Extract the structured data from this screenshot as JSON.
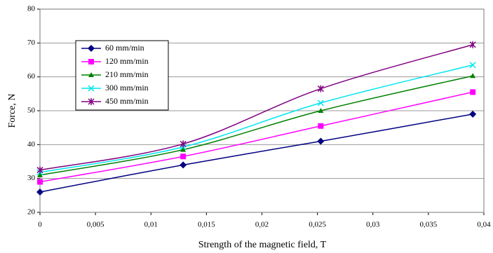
{
  "chart_data": {
    "type": "line",
    "x_label": "Strength of the magnetic field, T",
    "y_label": "Force, N",
    "xlim": [
      0,
      0.04
    ],
    "xticks": [
      0,
      {
        "value": 0.005,
        "label": "0,005"
      },
      {
        "value": 0.01,
        "label": "0,01"
      },
      {
        "value": 0.015,
        "label": "0,015"
      },
      {
        "value": 0.02,
        "label": "0,02"
      },
      {
        "value": 0.025,
        "label": "0,025"
      },
      {
        "value": 0.03,
        "label": "0,03"
      },
      {
        "value": 0.035,
        "label": "0,035"
      },
      {
        "value": 0.04,
        "label": "0,04"
      }
    ],
    "ylim": [
      20,
      80
    ],
    "yticks": [
      20,
      30,
      40,
      50,
      60,
      70,
      80
    ],
    "grid": true,
    "legend": "upper left",
    "x": [
      0,
      0.0129,
      0.0253,
      0.039
    ],
    "series": [
      {
        "name": "60 mm/min",
        "color": "#000080",
        "marker": "diamond",
        "values": [
          26,
          34,
          41,
          49
        ]
      },
      {
        "name": "120 mm/min",
        "color": "#ff00ff",
        "marker": "square",
        "values": [
          29,
          36.5,
          45.5,
          55.5
        ]
      },
      {
        "name": "210 mm/min",
        "color": "#008000",
        "marker": "triangle",
        "values": [
          31,
          38.5,
          50,
          60.3
        ]
      },
      {
        "name": "300 mm/min",
        "color": "#00e5ee",
        "marker": "x",
        "values": [
          31.8,
          39.3,
          52.3,
          63.5
        ]
      },
      {
        "name": "450 mm/min",
        "color": "#800080",
        "marker": "star",
        "values": [
          32.5,
          40.2,
          56.5,
          69.5
        ]
      }
    ]
  }
}
